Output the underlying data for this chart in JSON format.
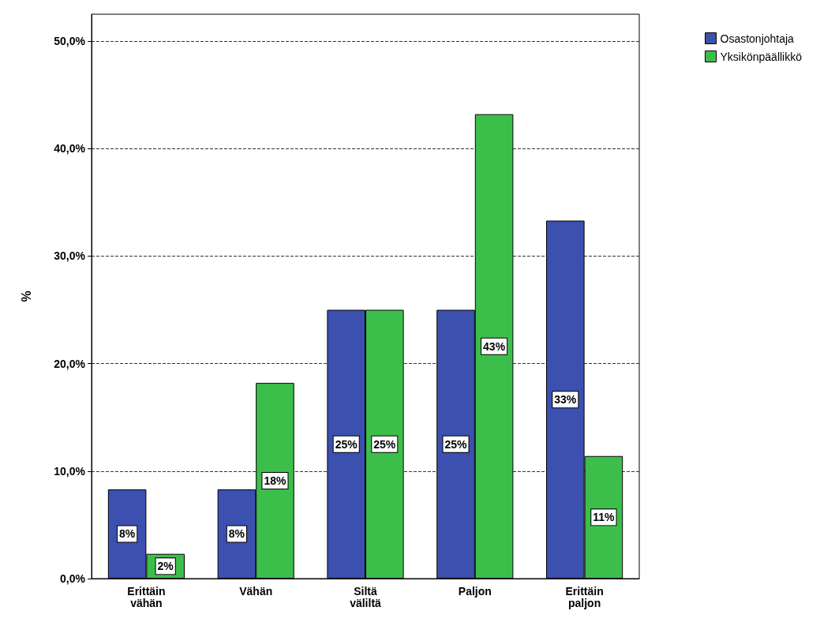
{
  "chart_data": {
    "type": "bar",
    "ylabel": "%",
    "categories": [
      "Erittäin\nvähän",
      "Vähän",
      "Siltä\nväliltä",
      "Paljon",
      "Erittäin\npaljon"
    ],
    "series": [
      {
        "name": "Osastonjohtaja",
        "color": "#3c50b0",
        "values": [
          8.3,
          8.3,
          25,
          25,
          33.3
        ],
        "value_labels": [
          "8%",
          "8%",
          "25%",
          "25%",
          "33%"
        ]
      },
      {
        "name": "Yksikönpäällikkö",
        "color": "#3cbf4a",
        "values": [
          2.3,
          18.2,
          25,
          43.2,
          11.4
        ],
        "value_labels": [
          "2%",
          "18%",
          "25%",
          "43%",
          "11%"
        ]
      }
    ],
    "ylim": [
      0,
      52.5
    ],
    "yticks": [
      {
        "value": 0,
        "label": "0,0%"
      },
      {
        "value": 10,
        "label": "10,0%"
      },
      {
        "value": 20,
        "label": "20,0%"
      },
      {
        "value": 30,
        "label": "30,0%"
      },
      {
        "value": 40,
        "label": "40,0%"
      },
      {
        "value": 50,
        "label": "50,0%"
      }
    ],
    "grid": "y",
    "legend": "top right"
  }
}
